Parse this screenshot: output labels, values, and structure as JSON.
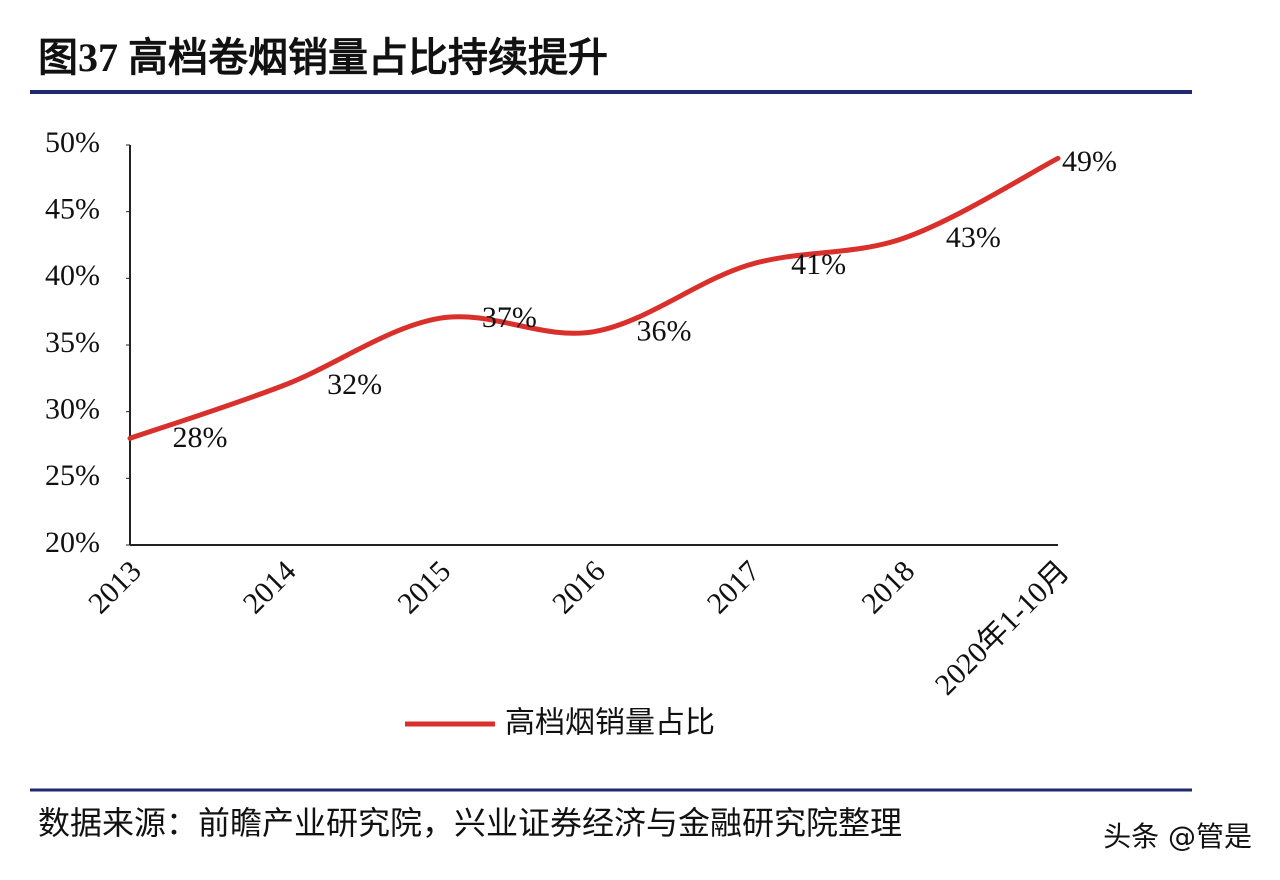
{
  "chart_data": {
    "type": "line",
    "title": "图37 高档卷烟销量占比持续提升",
    "categories": [
      "2013",
      "2014",
      "2015",
      "2016",
      "2017",
      "2018",
      "2020年1-10月"
    ],
    "series": [
      {
        "name": "高档烟销量占比",
        "color": "#d9302c",
        "values": [
          28,
          32,
          37,
          36,
          41,
          43,
          49
        ],
        "value_labels": [
          "28%",
          "32%",
          "37%",
          "36%",
          "41%",
          "43%",
          "49%"
        ]
      }
    ],
    "ylim": [
      20,
      50
    ],
    "yticks": [
      {
        "value": 20,
        "label": "20%"
      },
      {
        "value": 25,
        "label": "25%"
      },
      {
        "value": 30,
        "label": "30%"
      },
      {
        "value": 35,
        "label": "35%"
      },
      {
        "value": 40,
        "label": "40%"
      },
      {
        "value": 45,
        "label": "45%"
      },
      {
        "value": 50,
        "label": "50%"
      }
    ],
    "legend": "bottom",
    "source": "数据来源：前瞻产业研究院，兴业证券经济与金融研究院整理",
    "watermark": "头条 @管是"
  }
}
